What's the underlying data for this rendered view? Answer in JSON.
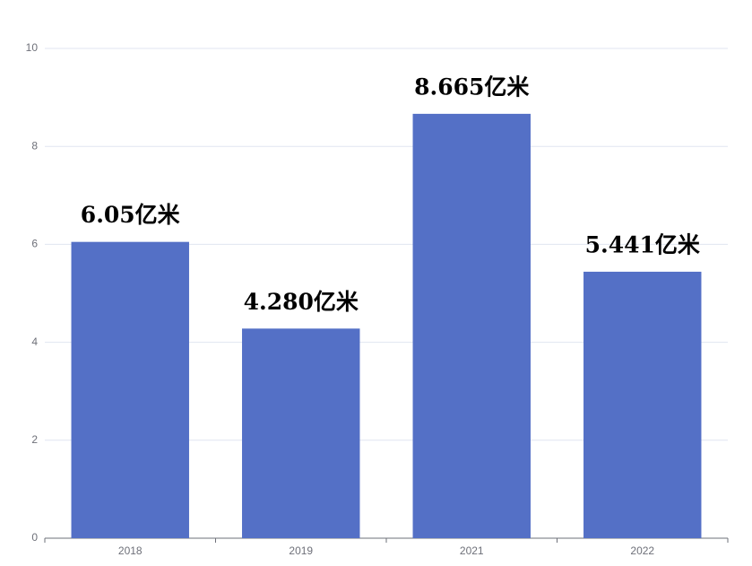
{
  "chart_data": {
    "type": "bar",
    "categories": [
      "2018",
      "2019",
      "2021",
      "2022"
    ],
    "values": [
      6.05,
      4.28,
      8.665,
      5.441
    ],
    "value_labels": [
      "6.05亿米",
      "4.280亿米",
      "8.665亿米",
      "5.441亿米"
    ],
    "color": "#5470c6",
    "ylim": [
      0,
      10
    ],
    "yticks": [
      0,
      2,
      4,
      6,
      8,
      10
    ],
    "grid": true
  }
}
